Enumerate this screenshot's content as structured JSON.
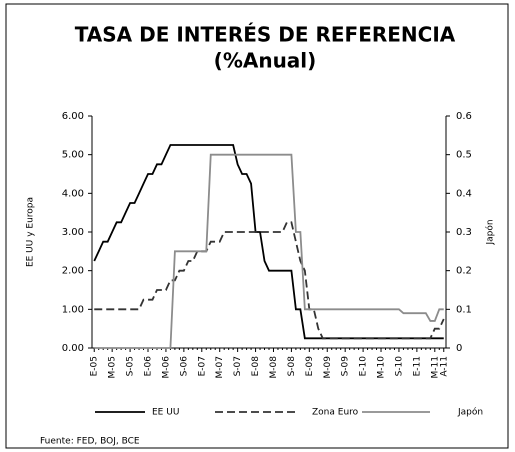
{
  "chart_data": {
    "type": "line",
    "title": "TASA DE INTERÉS DE REFERENCIA",
    "subtitle": "(%Anual)",
    "ylabel": "EE UU y Europa",
    "y2label": "Japón",
    "source": "Fuente: FED, BOJ, BCE",
    "categories": [
      "E-05",
      null,
      null,
      null,
      "M-05",
      null,
      null,
      null,
      "S-05",
      null,
      null,
      null,
      "E-06",
      null,
      null,
      null,
      "M-06",
      null,
      null,
      null,
      "S-06",
      null,
      null,
      null,
      "E-07",
      null,
      null,
      null,
      "M-07",
      null,
      null,
      null,
      "S-07",
      null,
      null,
      null,
      "E-08",
      null,
      null,
      null,
      "M-08",
      null,
      null,
      null,
      "S-08",
      null,
      null,
      null,
      "E-09",
      null,
      null,
      null,
      "M-09",
      null,
      null,
      null,
      "S-09",
      null,
      null,
      null,
      "E-10",
      null,
      null,
      null,
      "M-10",
      null,
      null,
      null,
      "S-10",
      null,
      null,
      null,
      "E-11",
      null,
      null,
      null,
      "M-11",
      null,
      "A-11"
    ],
    "series": [
      {
        "name": "EE UU",
        "color": "#000000",
        "dash": "none",
        "values": [
          2.25,
          2.5,
          2.75,
          2.75,
          3.0,
          3.25,
          3.25,
          3.5,
          3.75,
          3.75,
          4.0,
          4.25,
          4.5,
          4.5,
          4.75,
          4.75,
          5.0,
          5.25,
          5.25,
          5.25,
          5.25,
          5.25,
          5.25,
          5.25,
          5.25,
          5.25,
          5.25,
          5.25,
          5.25,
          5.25,
          5.25,
          5.25,
          4.75,
          4.5,
          4.5,
          4.25,
          3.0,
          3.0,
          2.25,
          2.0,
          2.0,
          2.0,
          2.0,
          2.0,
          2.0,
          1.0,
          1.0,
          0.25,
          0.25,
          0.25,
          0.25,
          0.25,
          0.25,
          0.25,
          0.25,
          0.25,
          0.25,
          0.25,
          0.25,
          0.25,
          0.25,
          0.25,
          0.25,
          0.25,
          0.25,
          0.25,
          0.25,
          0.25,
          0.25,
          0.25,
          0.25,
          0.25,
          0.25,
          0.25,
          0.25,
          0.25,
          0.25,
          0.25,
          0.25
        ]
      },
      {
        "name": "Zona Euro",
        "color": "#333333",
        "dash": "8 4",
        "values": [
          1.0,
          1.0,
          1.0,
          1.0,
          1.0,
          1.0,
          1.0,
          1.0,
          1.0,
          1.0,
          1.0,
          1.25,
          1.25,
          1.25,
          1.5,
          1.5,
          1.5,
          1.75,
          1.75,
          2.0,
          2.0,
          2.25,
          2.25,
          2.5,
          2.5,
          2.5,
          2.75,
          2.75,
          2.75,
          3.0,
          3.0,
          3.0,
          3.0,
          3.0,
          3.0,
          3.0,
          3.0,
          3.0,
          3.0,
          3.0,
          3.0,
          3.0,
          3.0,
          3.25,
          3.25,
          2.75,
          2.25,
          2.0,
          1.0,
          1.0,
          0.5,
          0.25,
          0.25,
          0.25,
          0.25,
          0.25,
          0.25,
          0.25,
          0.25,
          0.25,
          0.25,
          0.25,
          0.25,
          0.25,
          0.25,
          0.25,
          0.25,
          0.25,
          0.25,
          0.25,
          0.25,
          0.25,
          0.25,
          0.25,
          0.25,
          0.25,
          0.5,
          0.5,
          0.75
        ]
      },
      {
        "name": "Japón",
        "color": "#8c8c8c",
        "dash": "none",
        "axis": "y2",
        "values": [
          0,
          0,
          0,
          0,
          0,
          0,
          0,
          0,
          0,
          0,
          0,
          0,
          0,
          0,
          0,
          0,
          0,
          0,
          0.25,
          0.25,
          0.25,
          0.25,
          0.25,
          0.25,
          0.25,
          0.25,
          0.5,
          0.5,
          0.5,
          0.5,
          0.5,
          0.5,
          0.5,
          0.5,
          0.5,
          0.5,
          0.5,
          0.5,
          0.5,
          0.5,
          0.5,
          0.5,
          0.5,
          0.5,
          0.5,
          0.3,
          0.3,
          0.1,
          0.1,
          0.1,
          0.1,
          0.1,
          0.1,
          0.1,
          0.1,
          0.1,
          0.1,
          0.1,
          0.1,
          0.1,
          0.1,
          0.1,
          0.1,
          0.1,
          0.1,
          0.1,
          0.1,
          0.1,
          0.1,
          0.09,
          0.09,
          0.09,
          0.09,
          0.09,
          0.09,
          0.07,
          0.07,
          0.1,
          0.1
        ]
      }
    ],
    "ylim": [
      0,
      6
    ],
    "yticks": [
      {
        "value": 0,
        "label": "0.00"
      },
      {
        "value": 1,
        "label": "1.00"
      },
      {
        "value": 2,
        "label": "2.00"
      },
      {
        "value": 3,
        "label": "3.00"
      },
      {
        "value": 4,
        "label": "4.00"
      },
      {
        "value": 5,
        "label": "5.00"
      },
      {
        "value": 6,
        "label": "6.00"
      }
    ],
    "y2lim": [
      0,
      0.6
    ],
    "y2ticks": [
      0,
      0.1,
      0.2,
      0.3,
      0.4,
      0.5,
      0.6
    ]
  }
}
